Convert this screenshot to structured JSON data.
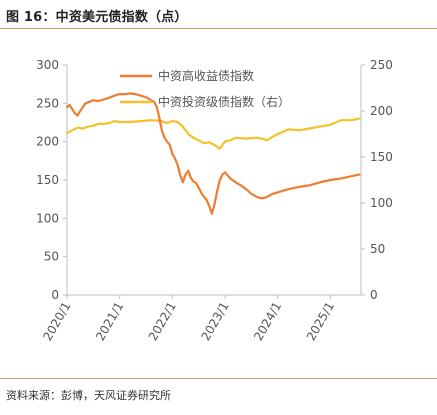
{
  "figure": {
    "title": "图 16：中资美元债指数（点）",
    "source": "资料来源：彭博，天风证券研究所"
  },
  "colors": {
    "high_yield": "#ed7d31",
    "investment_grade": "#f5c02a",
    "axis": "#bfbfbf",
    "rule": "#c9a063"
  },
  "chart_data": {
    "type": "line",
    "title": "",
    "x_tick_labels": [
      "2020/1",
      "2021/1",
      "2022/1",
      "2023/1",
      "2024/1",
      "2025/1"
    ],
    "x_range": [
      "2020-01",
      "2025-07"
    ],
    "y_left": {
      "min": 0,
      "max": 300,
      "ticks": [
        "0",
        "50",
        "100",
        "150",
        "200",
        "250",
        "300"
      ]
    },
    "y_right": {
      "min": 0,
      "max": 250,
      "ticks": [
        "0",
        "50",
        "100",
        "150",
        "200",
        "250"
      ]
    },
    "grid": false,
    "legend_position": "top-center",
    "series": [
      {
        "name": "中资高收益债指数",
        "axis": "left",
        "x": [
          2020.0,
          2020.05,
          2020.15,
          2020.2,
          2020.25,
          2020.35,
          2020.5,
          2020.6,
          2020.75,
          2020.9,
          2021.0,
          2021.1,
          2021.2,
          2021.3,
          2021.4,
          2021.5,
          2021.55,
          2021.6,
          2021.65,
          2021.7,
          2021.75,
          2021.8,
          2021.85,
          2021.9,
          2021.95,
          2022.0,
          2022.05,
          2022.1,
          2022.15,
          2022.2,
          2022.25,
          2022.3,
          2022.35,
          2022.4,
          2022.45,
          2022.5,
          2022.55,
          2022.6,
          2022.65,
          2022.7,
          2022.75,
          2022.8,
          2022.85,
          2022.9,
          2022.95,
          2023.0,
          2023.05,
          2023.1,
          2023.2,
          2023.3,
          2023.4,
          2023.5,
          2023.6,
          2023.7,
          2023.8,
          2023.9,
          2024.0,
          2024.2,
          2024.4,
          2024.6,
          2024.8,
          2025.0,
          2025.2,
          2025.4,
          2025.55
        ],
        "values": [
          245,
          248,
          237,
          234,
          240,
          250,
          254,
          253,
          256,
          260,
          262,
          262,
          263,
          262,
          260,
          258,
          256,
          254,
          252,
          246,
          232,
          215,
          205,
          200,
          196,
          184,
          178,
          170,
          156,
          147,
          157,
          162,
          153,
          148,
          146,
          140,
          133,
          128,
          124,
          116,
          106,
          118,
          136,
          150,
          157,
          160,
          156,
          152,
          147,
          143,
          138,
          132,
          128,
          126,
          128,
          132,
          134,
          138,
          141,
          143,
          147,
          150,
          152,
          155,
          157
        ]
      },
      {
        "name": "中资投资级债指数（右）",
        "axis": "right",
        "x": [
          2020.0,
          2020.1,
          2020.2,
          2020.3,
          2020.4,
          2020.5,
          2020.6,
          2020.7,
          2020.8,
          2020.9,
          2021.0,
          2021.2,
          2021.4,
          2021.6,
          2021.8,
          2021.9,
          2022.0,
          2022.1,
          2022.2,
          2022.3,
          2022.4,
          2022.5,
          2022.6,
          2022.7,
          2022.8,
          2022.9,
          2023.0,
          2023.1,
          2023.2,
          2023.4,
          2023.6,
          2023.7,
          2023.8,
          2023.9,
          2024.0,
          2024.2,
          2024.4,
          2024.6,
          2024.8,
          2025.0,
          2025.2,
          2025.4,
          2025.55
        ],
        "values": [
          176,
          179,
          182,
          181,
          183,
          184,
          186,
          186,
          187,
          189,
          188,
          188,
          189,
          190,
          189,
          187,
          189,
          188,
          183,
          175,
          171,
          168,
          165,
          166,
          163,
          159,
          167,
          168,
          171,
          170,
          171,
          170,
          168,
          172,
          175,
          180,
          179,
          181,
          183,
          185,
          190,
          190,
          192
        ]
      }
    ]
  }
}
